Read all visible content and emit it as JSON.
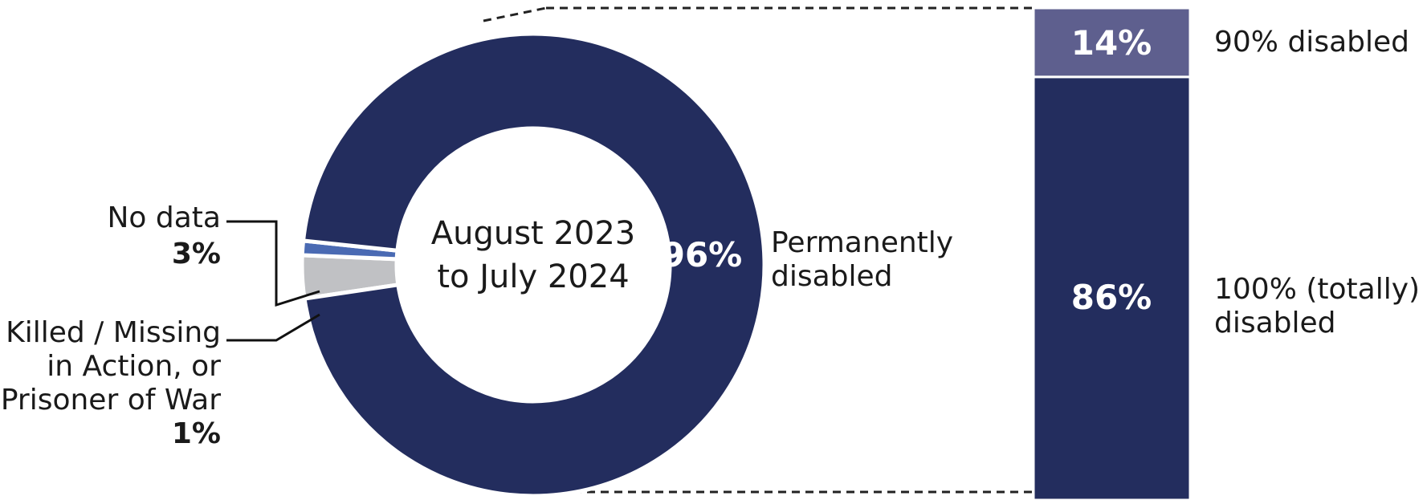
{
  "chart_data": [
    {
      "type": "pie",
      "center_label": [
        "August 2023",
        "to July 2024"
      ],
      "slices": [
        {
          "label": "Permanently disabled",
          "label_lines": [
            "Permanently",
            "disabled"
          ],
          "value": 96,
          "value_label": "96%",
          "color": "#232d5e"
        },
        {
          "label": "No data",
          "label_lines": [
            "No data"
          ],
          "value": 3,
          "value_label": "3%",
          "color": "#c0c1c4"
        },
        {
          "label": "Killed / Missing in Action, or Prisoner of War",
          "label_lines": [
            "Killed / Missing",
            "in Action, or",
            "Prisoner of War"
          ],
          "value": 1,
          "value_label": "1%",
          "color": "#4a6ab3"
        }
      ]
    },
    {
      "type": "bar",
      "stacked": true,
      "segments": [
        {
          "label": "100% (totally) disabled",
          "label_lines": [
            "100% (totally)",
            "disabled"
          ],
          "value": 86,
          "value_label": "86%",
          "color": "#232d5e"
        },
        {
          "label": "90% disabled",
          "label_lines": [
            "90% disabled"
          ],
          "value": 14,
          "value_label": "14%",
          "color": "#5e5f8e"
        }
      ]
    }
  ]
}
